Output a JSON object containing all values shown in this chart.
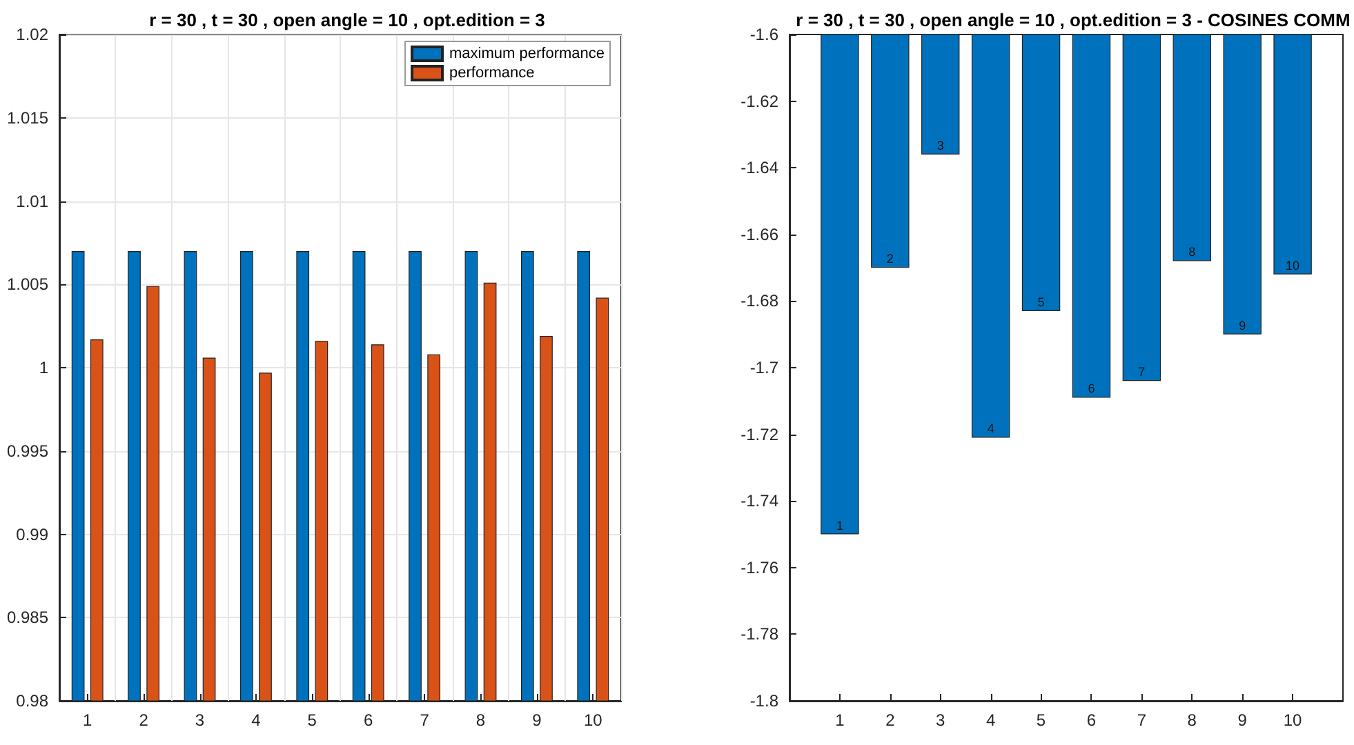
{
  "chart_data": [
    {
      "type": "bar",
      "title": "r = 30 , t = 30 , open angle = 10 , opt.edition = 3",
      "categories": [
        "1",
        "2",
        "3",
        "4",
        "5",
        "6",
        "7",
        "8",
        "9",
        "10"
      ],
      "series": [
        {
          "name": "maximum performance",
          "color": "#0072bd",
          "values": [
            1.007,
            1.007,
            1.007,
            1.007,
            1.007,
            1.007,
            1.007,
            1.007,
            1.007,
            1.007
          ]
        },
        {
          "name": "performance",
          "color": "#d95319",
          "values": [
            1.0017,
            1.0049,
            1.0006,
            0.9997,
            1.0016,
            1.0014,
            1.0008,
            1.0051,
            1.0019,
            1.0042
          ]
        }
      ],
      "ylim": [
        0.98,
        1.02
      ],
      "yticks": [
        0.98,
        0.985,
        0.99,
        0.995,
        1,
        1.005,
        1.01,
        1.015,
        1.02
      ],
      "grid": true,
      "legend": "top right"
    },
    {
      "type": "bar",
      "title": "r = 30 , t = 30 , open angle = 10 , opt.edition = 3 - COSINES COMM",
      "x": [
        1,
        2,
        3,
        4,
        5,
        6,
        7,
        8,
        9,
        10
      ],
      "series": [
        {
          "color": "#0072bd",
          "values": [
            -1.75,
            -1.67,
            -1.636,
            -1.721,
            -1.683,
            -1.709,
            -1.704,
            -1.668,
            -1.69,
            -1.672
          ]
        }
      ],
      "annotations": [
        {
          "text": "1",
          "x": 1,
          "y": -1.75
        },
        {
          "text": "2",
          "x": 2,
          "y": -1.67
        },
        {
          "text": "3",
          "x": 3,
          "y": -1.636
        },
        {
          "text": "4",
          "x": 4,
          "y": -1.721
        },
        {
          "text": "5",
          "x": 5,
          "y": -1.683
        },
        {
          "text": "6",
          "x": 6,
          "y": -1.709
        },
        {
          "text": "7",
          "x": 7,
          "y": -1.704
        },
        {
          "text": "8",
          "x": 8,
          "y": -1.668
        },
        {
          "text": "9",
          "x": 9,
          "y": -1.69
        },
        {
          "text": "10",
          "x": 10,
          "y": -1.672
        }
      ],
      "xlim": [
        0,
        11
      ],
      "xticks": [
        1,
        2,
        3,
        4,
        5,
        6,
        7,
        8,
        9,
        10
      ],
      "ylim": [
        -1.8,
        -1.6
      ],
      "yticks": [
        -1.8,
        -1.78,
        -1.76,
        -1.74,
        -1.72,
        -1.7,
        -1.68,
        -1.66,
        -1.64,
        -1.62,
        -1.6
      ],
      "grid": false
    }
  ]
}
